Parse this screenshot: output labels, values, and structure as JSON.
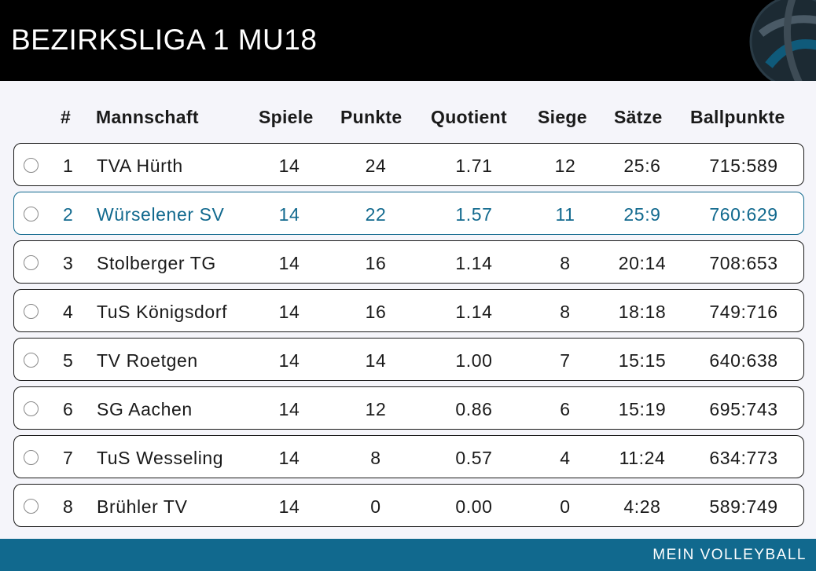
{
  "header": {
    "title": "BEZIRKSLIGA 1 MU18",
    "logo_icon": "volleyball-icon"
  },
  "table": {
    "columns": [
      "#",
      "Mannschaft",
      "Spiele",
      "Punkte",
      "Quotient",
      "Siege",
      "Sätze",
      "Ballpunkte"
    ],
    "rows": [
      {
        "rank": "1",
        "team": "TVA Hürth",
        "games": "14",
        "points": "24",
        "quotient": "1.71",
        "wins": "12",
        "sets": "25:6",
        "ballpoints": "715:589",
        "highlighted": false
      },
      {
        "rank": "2",
        "team": "Würselener SV",
        "games": "14",
        "points": "22",
        "quotient": "1.57",
        "wins": "11",
        "sets": "25:9",
        "ballpoints": "760:629",
        "highlighted": true
      },
      {
        "rank": "3",
        "team": "Stolberger TG",
        "games": "14",
        "points": "16",
        "quotient": "1.14",
        "wins": "8",
        "sets": "20:14",
        "ballpoints": "708:653",
        "highlighted": false
      },
      {
        "rank": "4",
        "team": "TuS Königsdorf",
        "games": "14",
        "points": "16",
        "quotient": "1.14",
        "wins": "8",
        "sets": "18:18",
        "ballpoints": "749:716",
        "highlighted": false
      },
      {
        "rank": "5",
        "team": "TV Roetgen",
        "games": "14",
        "points": "14",
        "quotient": "1.00",
        "wins": "7",
        "sets": "15:15",
        "ballpoints": "640:638",
        "highlighted": false
      },
      {
        "rank": "6",
        "team": "SG Aachen",
        "games": "14",
        "points": "12",
        "quotient": "0.86",
        "wins": "6",
        "sets": "15:19",
        "ballpoints": "695:743",
        "highlighted": false
      },
      {
        "rank": "7",
        "team": "TuS Wesseling",
        "games": "14",
        "points": "8",
        "quotient": "0.57",
        "wins": "4",
        "sets": "11:24",
        "ballpoints": "634:773",
        "highlighted": false
      },
      {
        "rank": "8",
        "team": "Brühler TV",
        "games": "14",
        "points": "0",
        "quotient": "0.00",
        "wins": "0",
        "sets": "4:28",
        "ballpoints": "589:749",
        "highlighted": false
      }
    ]
  },
  "footer": {
    "label": "MEIN VOLLEYBALL"
  },
  "colors": {
    "accent": "#11698e",
    "header_bg": "#000000",
    "page_bg": "#f5f5fa"
  }
}
